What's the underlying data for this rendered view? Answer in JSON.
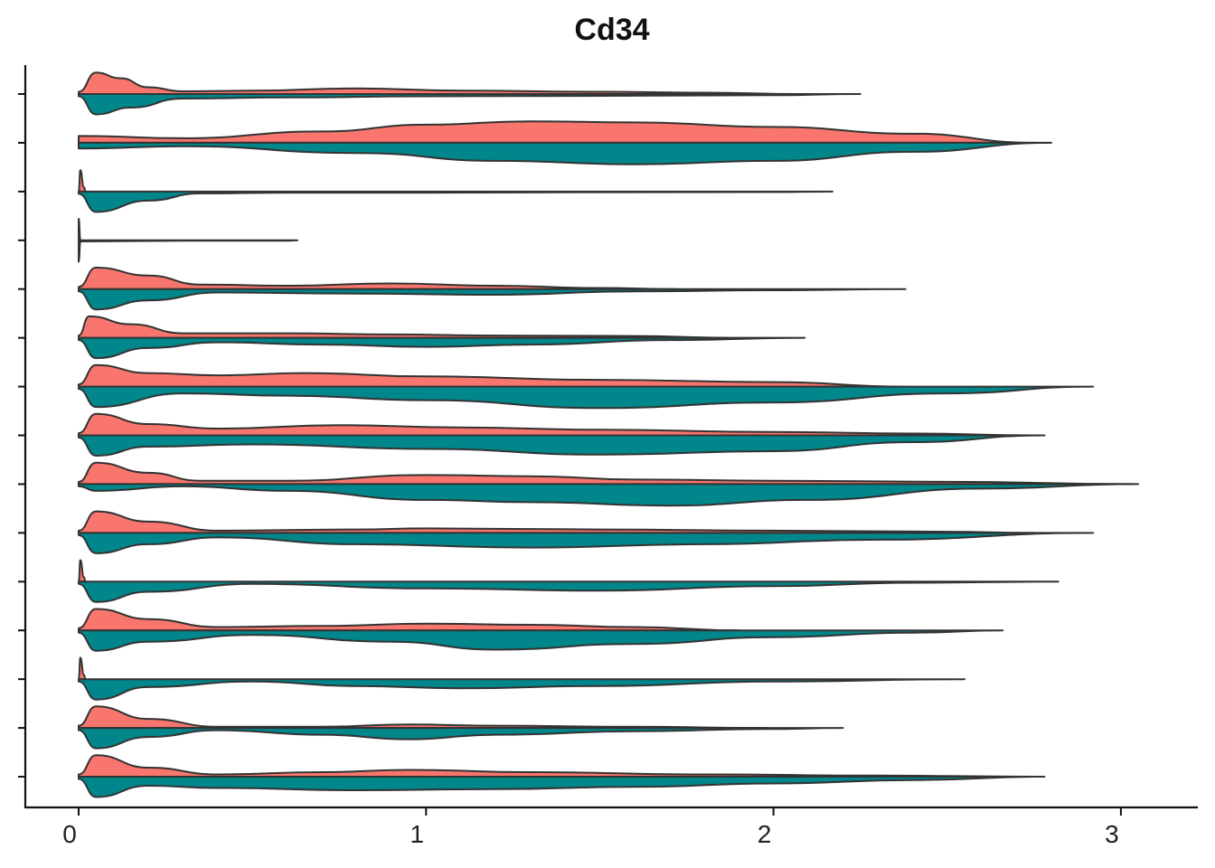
{
  "chart_data": {
    "type": "split-violin",
    "title": "Cd34",
    "xlabel": "",
    "ylabel": "",
    "xlim": [
      0,
      3.2
    ],
    "x_ticks": [
      "0",
      "1",
      "2",
      "3"
    ],
    "grid": false,
    "legend": "none",
    "series": [
      {
        "color": "#F8766D"
      },
      {
        "color": "#00868B"
      }
    ],
    "violins": [
      {
        "max": [
          2.08,
          2.25
        ],
        "upper": [
          [
            0,
            0.1
          ],
          [
            0.05,
            0.95
          ],
          [
            0.12,
            0.7
          ],
          [
            0.2,
            0.3
          ],
          [
            0.3,
            0.12
          ],
          [
            0.5,
            0.15
          ],
          [
            0.8,
            0.25
          ],
          [
            1.1,
            0.15
          ],
          [
            1.5,
            0.1
          ],
          [
            1.8,
            0.06
          ],
          [
            2.08,
            0
          ]
        ],
        "lower": [
          [
            0,
            0.1
          ],
          [
            0.05,
            0.9
          ],
          [
            0.15,
            0.6
          ],
          [
            0.3,
            0.2
          ],
          [
            0.6,
            0.15
          ],
          [
            1.0,
            0.1
          ],
          [
            1.5,
            0.08
          ],
          [
            2.0,
            0.05
          ],
          [
            2.25,
            0
          ]
        ]
      },
      {
        "max": [
          2.75,
          2.8
        ],
        "upper": [
          [
            0,
            0.3
          ],
          [
            0.3,
            0.2
          ],
          [
            0.7,
            0.5
          ],
          [
            1.0,
            0.8
          ],
          [
            1.3,
            0.95
          ],
          [
            1.6,
            0.9
          ],
          [
            2.0,
            0.7
          ],
          [
            2.4,
            0.4
          ],
          [
            2.75,
            0
          ]
        ],
        "lower": [
          [
            0,
            0.25
          ],
          [
            0.3,
            0.15
          ],
          [
            0.8,
            0.45
          ],
          [
            1.2,
            0.8
          ],
          [
            1.6,
            0.95
          ],
          [
            2.0,
            0.8
          ],
          [
            2.4,
            0.4
          ],
          [
            2.8,
            0
          ]
        ]
      },
      {
        "max": [
          0.02,
          2.17
        ],
        "upper": [
          [
            0,
            0
          ],
          [
            0.005,
            0.95
          ],
          [
            0.015,
            0.2
          ],
          [
            0.02,
            0
          ]
        ],
        "lower": [
          [
            0,
            0.1
          ],
          [
            0.05,
            0.9
          ],
          [
            0.2,
            0.4
          ],
          [
            0.35,
            0.08
          ],
          [
            0.6,
            0.05
          ],
          [
            1.0,
            0.05
          ],
          [
            1.5,
            0.03
          ],
          [
            2.0,
            0.02
          ],
          [
            2.17,
            0
          ]
        ]
      },
      {
        "max": [
          0.005,
          0.63
        ],
        "upper": [
          [
            0,
            0.95
          ],
          [
            0.005,
            0
          ]
        ],
        "lower": [
          [
            0,
            0.95
          ],
          [
            0.005,
            0.05
          ],
          [
            0.3,
            0.02
          ],
          [
            0.6,
            0.02
          ],
          [
            0.63,
            0
          ]
        ]
      },
      {
        "max": [
          1.72,
          2.38
        ],
        "upper": [
          [
            0,
            0.1
          ],
          [
            0.05,
            0.95
          ],
          [
            0.2,
            0.6
          ],
          [
            0.35,
            0.2
          ],
          [
            0.6,
            0.15
          ],
          [
            0.9,
            0.25
          ],
          [
            1.2,
            0.15
          ],
          [
            1.5,
            0.05
          ],
          [
            1.72,
            0
          ]
        ],
        "lower": [
          [
            0,
            0.1
          ],
          [
            0.05,
            0.9
          ],
          [
            0.2,
            0.5
          ],
          [
            0.4,
            0.15
          ],
          [
            0.8,
            0.2
          ],
          [
            1.2,
            0.25
          ],
          [
            1.6,
            0.1
          ],
          [
            2.0,
            0.05
          ],
          [
            2.38,
            0
          ]
        ]
      },
      {
        "max": [
          1.87,
          2.09
        ],
        "upper": [
          [
            0,
            0.1
          ],
          [
            0.03,
            0.95
          ],
          [
            0.15,
            0.6
          ],
          [
            0.3,
            0.2
          ],
          [
            0.6,
            0.2
          ],
          [
            0.9,
            0.15
          ],
          [
            1.2,
            0.1
          ],
          [
            1.6,
            0.08
          ],
          [
            1.87,
            0
          ]
        ],
        "lower": [
          [
            0,
            0.1
          ],
          [
            0.05,
            0.9
          ],
          [
            0.2,
            0.45
          ],
          [
            0.4,
            0.2
          ],
          [
            0.7,
            0.3
          ],
          [
            1.0,
            0.4
          ],
          [
            1.3,
            0.3
          ],
          [
            1.7,
            0.1
          ],
          [
            2.09,
            0
          ]
        ]
      },
      {
        "max": [
          2.38,
          2.92
        ],
        "upper": [
          [
            0,
            0.1
          ],
          [
            0.05,
            0.95
          ],
          [
            0.2,
            0.6
          ],
          [
            0.4,
            0.5
          ],
          [
            0.65,
            0.6
          ],
          [
            1.0,
            0.45
          ],
          [
            1.5,
            0.3
          ],
          [
            2.0,
            0.2
          ],
          [
            2.38,
            0
          ]
        ],
        "lower": [
          [
            0,
            0.1
          ],
          [
            0.05,
            0.9
          ],
          [
            0.3,
            0.3
          ],
          [
            0.6,
            0.4
          ],
          [
            1.0,
            0.6
          ],
          [
            1.5,
            0.95
          ],
          [
            2.0,
            0.7
          ],
          [
            2.5,
            0.3
          ],
          [
            2.92,
            0
          ]
        ]
      },
      {
        "max": [
          2.75,
          2.78
        ],
        "upper": [
          [
            0,
            0.1
          ],
          [
            0.05,
            0.95
          ],
          [
            0.2,
            0.5
          ],
          [
            0.4,
            0.3
          ],
          [
            0.75,
            0.45
          ],
          [
            1.1,
            0.35
          ],
          [
            1.5,
            0.25
          ],
          [
            2.0,
            0.15
          ],
          [
            2.4,
            0.08
          ],
          [
            2.75,
            0
          ]
        ],
        "lower": [
          [
            0,
            0.1
          ],
          [
            0.05,
            0.9
          ],
          [
            0.2,
            0.5
          ],
          [
            0.5,
            0.4
          ],
          [
            1.0,
            0.6
          ],
          [
            1.5,
            0.85
          ],
          [
            2.0,
            0.7
          ],
          [
            2.4,
            0.3
          ],
          [
            2.78,
            0
          ]
        ]
      },
      {
        "max": [
          3.04,
          3.05
        ],
        "upper": [
          [
            0,
            0.1
          ],
          [
            0.05,
            0.95
          ],
          [
            0.2,
            0.5
          ],
          [
            0.35,
            0.15
          ],
          [
            0.6,
            0.15
          ],
          [
            1.0,
            0.4
          ],
          [
            1.3,
            0.35
          ],
          [
            1.6,
            0.2
          ],
          [
            2.0,
            0.15
          ],
          [
            2.5,
            0.1
          ],
          [
            3.04,
            0
          ]
        ],
        "lower": [
          [
            0,
            0.1
          ],
          [
            0.05,
            0.3
          ],
          [
            0.3,
            0.1
          ],
          [
            0.6,
            0.3
          ],
          [
            1.0,
            0.7
          ],
          [
            1.3,
            0.8
          ],
          [
            1.7,
            0.95
          ],
          [
            2.1,
            0.7
          ],
          [
            2.6,
            0.2
          ],
          [
            3.05,
            0
          ]
        ]
      },
      {
        "max": [
          2.75,
          2.92
        ],
        "upper": [
          [
            0,
            0.1
          ],
          [
            0.05,
            0.95
          ],
          [
            0.2,
            0.5
          ],
          [
            0.4,
            0.1
          ],
          [
            0.8,
            0.15
          ],
          [
            1.0,
            0.2
          ],
          [
            1.5,
            0.15
          ],
          [
            2.0,
            0.1
          ],
          [
            2.5,
            0.05
          ],
          [
            2.75,
            0
          ]
        ],
        "lower": [
          [
            0,
            0.1
          ],
          [
            0.05,
            0.9
          ],
          [
            0.2,
            0.5
          ],
          [
            0.4,
            0.2
          ],
          [
            0.8,
            0.5
          ],
          [
            1.3,
            0.65
          ],
          [
            1.8,
            0.5
          ],
          [
            2.3,
            0.3
          ],
          [
            2.92,
            0
          ]
        ]
      },
      {
        "max": [
          0.02,
          2.82
        ],
        "upper": [
          [
            0,
            0
          ],
          [
            0.005,
            0.95
          ],
          [
            0.015,
            0.2
          ],
          [
            0.02,
            0
          ]
        ],
        "lower": [
          [
            0,
            0.1
          ],
          [
            0.05,
            0.9
          ],
          [
            0.2,
            0.45
          ],
          [
            0.5,
            0.1
          ],
          [
            1.0,
            0.3
          ],
          [
            1.5,
            0.4
          ],
          [
            2.0,
            0.2
          ],
          [
            2.4,
            0.05
          ],
          [
            2.82,
            0
          ]
        ]
      },
      {
        "max": [
          1.9,
          2.66
        ],
        "upper": [
          [
            0,
            0.1
          ],
          [
            0.05,
            0.95
          ],
          [
            0.2,
            0.5
          ],
          [
            0.4,
            0.15
          ],
          [
            0.7,
            0.2
          ],
          [
            1.0,
            0.3
          ],
          [
            1.3,
            0.25
          ],
          [
            1.6,
            0.15
          ],
          [
            1.9,
            0
          ]
        ],
        "lower": [
          [
            0,
            0.1
          ],
          [
            0.05,
            0.9
          ],
          [
            0.2,
            0.5
          ],
          [
            0.5,
            0.2
          ],
          [
            0.9,
            0.5
          ],
          [
            1.2,
            0.85
          ],
          [
            1.6,
            0.6
          ],
          [
            2.0,
            0.3
          ],
          [
            2.4,
            0.1
          ],
          [
            2.66,
            0
          ]
        ]
      },
      {
        "max": [
          0.02,
          2.55
        ],
        "upper": [
          [
            0,
            0
          ],
          [
            0.005,
            0.95
          ],
          [
            0.015,
            0.2
          ],
          [
            0.02,
            0
          ]
        ],
        "lower": [
          [
            0,
            0.1
          ],
          [
            0.05,
            0.9
          ],
          [
            0.2,
            0.35
          ],
          [
            0.5,
            0.1
          ],
          [
            0.8,
            0.3
          ],
          [
            1.1,
            0.4
          ],
          [
            1.5,
            0.3
          ],
          [
            2.0,
            0.1
          ],
          [
            2.55,
            0
          ]
        ]
      },
      {
        "max": [
          1.98,
          2.2
        ],
        "upper": [
          [
            0,
            0.1
          ],
          [
            0.05,
            0.95
          ],
          [
            0.2,
            0.4
          ],
          [
            0.4,
            0.05
          ],
          [
            0.7,
            0.05
          ],
          [
            0.95,
            0.15
          ],
          [
            1.2,
            0.1
          ],
          [
            1.6,
            0.05
          ],
          [
            1.98,
            0
          ]
        ],
        "lower": [
          [
            0,
            0.1
          ],
          [
            0.05,
            0.9
          ],
          [
            0.2,
            0.4
          ],
          [
            0.4,
            0.1
          ],
          [
            0.7,
            0.3
          ],
          [
            0.95,
            0.5
          ],
          [
            1.2,
            0.3
          ],
          [
            1.6,
            0.15
          ],
          [
            1.98,
            0.05
          ],
          [
            2.2,
            0
          ]
        ]
      },
      {
        "max": [
          2.77,
          2.78
        ],
        "upper": [
          [
            0,
            0.1
          ],
          [
            0.05,
            0.95
          ],
          [
            0.2,
            0.4
          ],
          [
            0.4,
            0.1
          ],
          [
            0.7,
            0.2
          ],
          [
            0.95,
            0.3
          ],
          [
            1.3,
            0.2
          ],
          [
            1.8,
            0.1
          ],
          [
            2.3,
            0.05
          ],
          [
            2.77,
            0
          ]
        ],
        "lower": [
          [
            0,
            0.1
          ],
          [
            0.05,
            0.9
          ],
          [
            0.2,
            0.4
          ],
          [
            0.4,
            0.5
          ],
          [
            0.8,
            0.6
          ],
          [
            1.2,
            0.55
          ],
          [
            1.6,
            0.45
          ],
          [
            2.0,
            0.3
          ],
          [
            2.4,
            0.15
          ],
          [
            2.78,
            0
          ]
        ]
      }
    ]
  }
}
